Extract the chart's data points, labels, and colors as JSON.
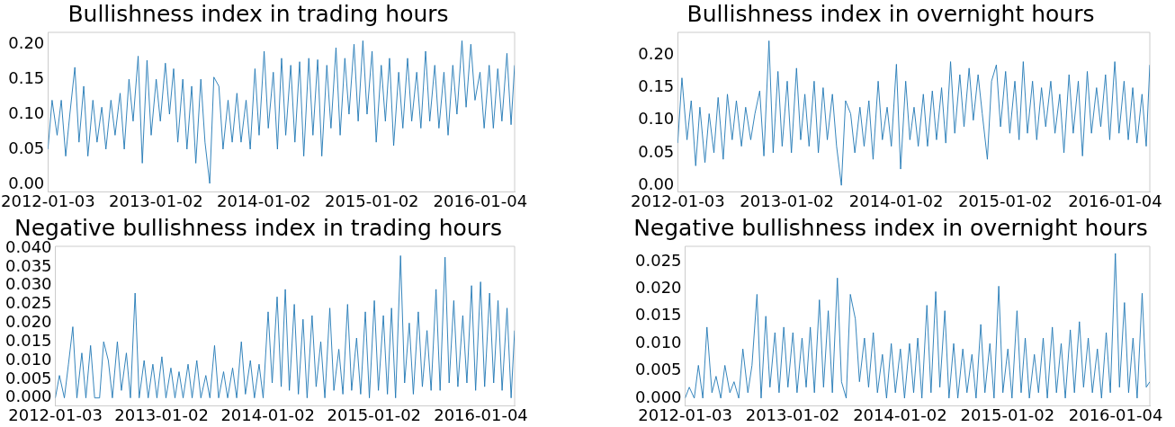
{
  "chart_data": [
    {
      "type": "line",
      "title": "Bullishness index in trading hours",
      "color": "#1f77b4",
      "x": [
        "2012-01-03",
        "2012-01-17",
        "2012-02-03",
        "2012-02-17",
        "2012-03-03",
        "2012-03-17",
        "2012-04-03",
        "2012-04-17",
        "2012-05-03",
        "2012-05-17",
        "2012-06-03",
        "2012-06-17",
        "2012-07-03",
        "2012-07-17",
        "2012-08-03",
        "2012-08-17",
        "2012-09-03",
        "2012-09-17",
        "2012-10-03",
        "2012-10-17",
        "2012-11-03",
        "2012-11-17",
        "2012-12-03",
        "2012-12-17",
        "2013-01-03",
        "2013-01-17",
        "2013-02-03",
        "2013-02-17",
        "2013-03-03",
        "2013-03-17",
        "2013-04-03",
        "2013-04-17",
        "2013-05-03",
        "2013-05-17",
        "2013-06-03",
        "2013-06-17",
        "2013-07-03",
        "2013-07-17",
        "2013-08-03",
        "2013-08-17",
        "2013-09-03",
        "2013-09-17",
        "2013-10-03",
        "2013-10-17",
        "2013-11-03",
        "2013-11-17",
        "2013-12-03",
        "2013-12-17",
        "2014-01-03",
        "2014-01-17",
        "2014-02-03",
        "2014-02-17",
        "2014-03-03",
        "2014-03-17",
        "2014-04-03",
        "2014-04-17",
        "2014-05-03",
        "2014-05-17",
        "2014-06-03",
        "2014-06-17",
        "2014-07-03",
        "2014-07-17",
        "2014-08-03",
        "2014-08-17",
        "2014-09-03",
        "2014-09-17",
        "2014-10-03",
        "2014-10-17",
        "2014-11-03",
        "2014-11-17",
        "2014-12-03",
        "2014-12-17",
        "2015-01-03",
        "2015-01-17",
        "2015-02-03",
        "2015-02-17",
        "2015-03-03",
        "2015-03-17",
        "2015-04-03",
        "2015-04-17",
        "2015-05-03",
        "2015-05-17",
        "2015-06-03",
        "2015-06-17",
        "2015-07-03",
        "2015-07-17",
        "2015-08-03",
        "2015-08-17",
        "2015-09-03",
        "2015-09-17",
        "2015-10-03",
        "2015-10-17",
        "2015-11-03",
        "2015-11-17",
        "2015-12-03",
        "2015-12-17",
        "2016-01-03",
        "2016-01-17",
        "2016-02-03",
        "2016-02-17",
        "2016-03-03",
        "2016-03-17",
        "2016-04-03",
        "2016-04-17",
        "2016-04-29"
      ],
      "values": [
        0.05,
        0.12,
        0.07,
        0.12,
        0.04,
        0.1,
        0.167,
        0.06,
        0.14,
        0.04,
        0.12,
        0.06,
        0.11,
        0.05,
        0.12,
        0.07,
        0.13,
        0.05,
        0.15,
        0.09,
        0.183,
        0.03,
        0.177,
        0.07,
        0.15,
        0.09,
        0.173,
        0.1,
        0.165,
        0.06,
        0.15,
        0.05,
        0.14,
        0.03,
        0.15,
        0.06,
        0.001,
        0.153,
        0.14,
        0.05,
        0.12,
        0.06,
        0.13,
        0.06,
        0.12,
        0.05,
        0.165,
        0.07,
        0.19,
        0.08,
        0.16,
        0.05,
        0.18,
        0.07,
        0.17,
        0.06,
        0.175,
        0.04,
        0.18,
        0.07,
        0.178,
        0.04,
        0.17,
        0.08,
        0.195,
        0.07,
        0.18,
        0.1,
        0.2,
        0.09,
        0.205,
        0.1,
        0.19,
        0.06,
        0.17,
        0.09,
        0.18,
        0.055,
        0.16,
        0.08,
        0.18,
        0.09,
        0.16,
        0.08,
        0.19,
        0.09,
        0.17,
        0.08,
        0.16,
        0.07,
        0.17,
        0.1,
        0.205,
        0.11,
        0.2,
        0.12,
        0.16,
        0.08,
        0.17,
        0.08,
        0.165,
        0.09,
        0.187,
        0.085,
        0.17
      ],
      "xlim": [
        "2012-01-03",
        "2016-04-29"
      ],
      "xticks": [
        "2012-01-03",
        "2013-01-02",
        "2014-01-02",
        "2015-01-02",
        "2016-01-04"
      ],
      "ylim": [
        -0.011,
        0.217
      ],
      "yticks": [
        {
          "value": 0,
          "label": "0.00"
        },
        {
          "value": 0.05,
          "label": "0.05"
        },
        {
          "value": 0.1,
          "label": "0.10"
        },
        {
          "value": 0.15,
          "label": "0.15"
        },
        {
          "value": 0.2,
          "label": "0.20"
        }
      ]
    },
    {
      "type": "line",
      "title": "Bullishness index in overnight hours",
      "color": "#1f77b4",
      "x": [
        "2012-01-03",
        "2012-01-17",
        "2012-02-03",
        "2012-02-17",
        "2012-03-03",
        "2012-03-17",
        "2012-04-03",
        "2012-04-17",
        "2012-05-03",
        "2012-05-17",
        "2012-06-03",
        "2012-06-17",
        "2012-07-03",
        "2012-07-17",
        "2012-08-03",
        "2012-08-17",
        "2012-09-03",
        "2012-09-17",
        "2012-10-03",
        "2012-10-17",
        "2012-11-03",
        "2012-11-17",
        "2012-12-03",
        "2012-12-17",
        "2013-01-03",
        "2013-01-17",
        "2013-02-03",
        "2013-02-17",
        "2013-03-03",
        "2013-03-17",
        "2013-04-03",
        "2013-04-17",
        "2013-05-03",
        "2013-05-17",
        "2013-06-03",
        "2013-06-17",
        "2013-07-03",
        "2013-07-17",
        "2013-08-03",
        "2013-08-17",
        "2013-09-03",
        "2013-09-17",
        "2013-10-03",
        "2013-10-17",
        "2013-11-03",
        "2013-11-17",
        "2013-12-03",
        "2013-12-17",
        "2014-01-03",
        "2014-01-17",
        "2014-02-03",
        "2014-02-17",
        "2014-03-03",
        "2014-03-17",
        "2014-04-03",
        "2014-04-17",
        "2014-05-03",
        "2014-05-17",
        "2014-06-03",
        "2014-06-17",
        "2014-07-03",
        "2014-07-17",
        "2014-08-03",
        "2014-08-17",
        "2014-09-03",
        "2014-09-17",
        "2014-10-03",
        "2014-10-17",
        "2014-11-03",
        "2014-11-17",
        "2014-12-03",
        "2014-12-17",
        "2015-01-03",
        "2015-01-17",
        "2015-02-03",
        "2015-02-17",
        "2015-03-03",
        "2015-03-17",
        "2015-04-03",
        "2015-04-17",
        "2015-05-03",
        "2015-05-17",
        "2015-06-03",
        "2015-06-17",
        "2015-07-03",
        "2015-07-17",
        "2015-08-03",
        "2015-08-17",
        "2015-09-03",
        "2015-09-17",
        "2015-10-03",
        "2015-10-17",
        "2015-11-03",
        "2015-11-17",
        "2015-12-03",
        "2015-12-17",
        "2016-01-03",
        "2016-01-17",
        "2016-02-03",
        "2016-02-17",
        "2016-03-03",
        "2016-03-17",
        "2016-04-03",
        "2016-04-17",
        "2016-04-29"
      ],
      "values": [
        0.065,
        0.165,
        0.07,
        0.13,
        0.03,
        0.12,
        0.035,
        0.11,
        0.05,
        0.135,
        0.04,
        0.14,
        0.07,
        0.13,
        0.06,
        0.12,
        0.07,
        0.11,
        0.145,
        0.045,
        0.222,
        0.05,
        0.175,
        0.06,
        0.16,
        0.05,
        0.18,
        0.07,
        0.14,
        0.06,
        0.16,
        0.05,
        0.15,
        0.07,
        0.14,
        0.06,
        0.0,
        0.13,
        0.11,
        0.05,
        0.12,
        0.06,
        0.13,
        0.04,
        0.16,
        0.07,
        0.12,
        0.06,
        0.186,
        0.025,
        0.16,
        0.07,
        0.12,
        0.06,
        0.14,
        0.06,
        0.145,
        0.07,
        0.15,
        0.065,
        0.19,
        0.08,
        0.17,
        0.09,
        0.18,
        0.1,
        0.17,
        0.11,
        0.04,
        0.16,
        0.185,
        0.09,
        0.175,
        0.08,
        0.16,
        0.07,
        0.19,
        0.08,
        0.16,
        0.07,
        0.15,
        0.09,
        0.16,
        0.08,
        0.14,
        0.05,
        0.17,
        0.08,
        0.16,
        0.045,
        0.175,
        0.08,
        0.15,
        0.09,
        0.17,
        0.07,
        0.19,
        0.08,
        0.16,
        0.07,
        0.15,
        0.065,
        0.14,
        0.06,
        0.185
      ],
      "xlim": [
        "2012-01-03",
        "2016-04-29"
      ],
      "xticks": [
        "2012-01-03",
        "2013-01-02",
        "2014-01-02",
        "2015-01-02",
        "2016-01-04"
      ],
      "ylim": [
        -0.01,
        0.235
      ],
      "yticks": [
        {
          "value": 0,
          "label": "0.00"
        },
        {
          "value": 0.05,
          "label": "0.05"
        },
        {
          "value": 0.1,
          "label": "0.10"
        },
        {
          "value": 0.15,
          "label": "0.15"
        },
        {
          "value": 0.2,
          "label": "0.20"
        }
      ]
    },
    {
      "type": "line",
      "title": "Negative bullishness index in trading hours",
      "color": "#1f77b4",
      "x": [
        "2012-01-03",
        "2012-01-17",
        "2012-02-03",
        "2012-02-17",
        "2012-03-03",
        "2012-03-17",
        "2012-04-03",
        "2012-04-17",
        "2012-05-03",
        "2012-05-17",
        "2012-06-03",
        "2012-06-17",
        "2012-07-03",
        "2012-07-17",
        "2012-08-03",
        "2012-08-17",
        "2012-09-03",
        "2012-09-17",
        "2012-10-03",
        "2012-10-17",
        "2012-11-03",
        "2012-11-17",
        "2012-12-03",
        "2012-12-17",
        "2013-01-03",
        "2013-01-17",
        "2013-02-03",
        "2013-02-17",
        "2013-03-03",
        "2013-03-17",
        "2013-04-03",
        "2013-04-17",
        "2013-05-03",
        "2013-05-17",
        "2013-06-03",
        "2013-06-17",
        "2013-07-03",
        "2013-07-17",
        "2013-08-03",
        "2013-08-17",
        "2013-09-03",
        "2013-09-17",
        "2013-10-03",
        "2013-10-17",
        "2013-11-03",
        "2013-11-17",
        "2013-12-03",
        "2013-12-17",
        "2014-01-03",
        "2014-01-17",
        "2014-02-03",
        "2014-02-17",
        "2014-03-03",
        "2014-03-17",
        "2014-04-03",
        "2014-04-17",
        "2014-05-03",
        "2014-05-17",
        "2014-06-03",
        "2014-06-17",
        "2014-07-03",
        "2014-07-17",
        "2014-08-03",
        "2014-08-17",
        "2014-09-03",
        "2014-09-17",
        "2014-10-03",
        "2014-10-17",
        "2014-11-03",
        "2014-11-17",
        "2014-12-03",
        "2014-12-17",
        "2015-01-03",
        "2015-01-17",
        "2015-02-03",
        "2015-02-17",
        "2015-03-03",
        "2015-03-17",
        "2015-04-03",
        "2015-04-17",
        "2015-05-03",
        "2015-05-17",
        "2015-06-03",
        "2015-06-17",
        "2015-07-03",
        "2015-07-17",
        "2015-08-03",
        "2015-08-17",
        "2015-09-03",
        "2015-09-17",
        "2015-10-03",
        "2015-10-17",
        "2015-11-03",
        "2015-11-17",
        "2015-12-03",
        "2015-12-17",
        "2016-01-03",
        "2016-01-17",
        "2016-02-03",
        "2016-02-17",
        "2016-03-03",
        "2016-03-17",
        "2016-04-03",
        "2016-04-17",
        "2016-04-29"
      ],
      "values": [
        0.0,
        0.006,
        0.0,
        0.009,
        0.019,
        0.0,
        0.012,
        0.0,
        0.014,
        0.0,
        0.0,
        0.015,
        0.01,
        0.0,
        0.015,
        0.002,
        0.012,
        0.0,
        0.028,
        0.0,
        0.01,
        0.0,
        0.009,
        0.0,
        0.011,
        0.0,
        0.008,
        0.0,
        0.007,
        0.0,
        0.009,
        0.0,
        0.01,
        0.0,
        0.006,
        0.0,
        0.014,
        0.0,
        0.007,
        0.0,
        0.008,
        0.0,
        0.015,
        0.001,
        0.01,
        0.0,
        0.009,
        0.0,
        0.023,
        0.004,
        0.027,
        0.003,
        0.029,
        0.002,
        0.025,
        0.001,
        0.021,
        0.0,
        0.022,
        0.003,
        0.015,
        0.0,
        0.024,
        0.002,
        0.013,
        0.001,
        0.025,
        0.002,
        0.016,
        0.001,
        0.023,
        0.0,
        0.026,
        0.002,
        0.022,
        0.001,
        0.024,
        0.0,
        0.038,
        0.004,
        0.02,
        0.001,
        0.023,
        0.003,
        0.018,
        0.002,
        0.029,
        0.002,
        0.0376,
        0.004,
        0.026,
        0.003,
        0.022,
        0.004,
        0.03,
        0.002,
        0.031,
        0.003,
        0.028,
        0.004,
        0.026,
        0.002,
        0.024,
        0.0,
        0.018
      ],
      "xlim": [
        "2012-01-03",
        "2016-04-29"
      ],
      "xticks": [
        "2012-01-03",
        "2013-01-02",
        "2014-01-02",
        "2015-01-02",
        "2016-01-04"
      ],
      "ylim": [
        -0.0021,
        0.0405
      ],
      "yticks": [
        {
          "value": 0,
          "label": "0.000"
        },
        {
          "value": 0.005,
          "label": "0.005"
        },
        {
          "value": 0.01,
          "label": "0.010"
        },
        {
          "value": 0.015,
          "label": "0.015"
        },
        {
          "value": 0.02,
          "label": "0.020"
        },
        {
          "value": 0.025,
          "label": "0.025"
        },
        {
          "value": 0.03,
          "label": "0.030"
        },
        {
          "value": 0.035,
          "label": "0.035"
        },
        {
          "value": 0.04,
          "label": "0.040"
        }
      ]
    },
    {
      "type": "line",
      "title": "Negative bullishness index in overnight hours",
      "color": "#1f77b4",
      "x": [
        "2012-01-03",
        "2012-01-17",
        "2012-02-03",
        "2012-02-17",
        "2012-03-03",
        "2012-03-17",
        "2012-04-03",
        "2012-04-17",
        "2012-05-03",
        "2012-05-17",
        "2012-06-03",
        "2012-06-17",
        "2012-07-03",
        "2012-07-17",
        "2012-08-03",
        "2012-08-17",
        "2012-09-03",
        "2012-09-17",
        "2012-10-03",
        "2012-10-17",
        "2012-11-03",
        "2012-11-17",
        "2012-12-03",
        "2012-12-17",
        "2013-01-03",
        "2013-01-17",
        "2013-02-03",
        "2013-02-17",
        "2013-03-03",
        "2013-03-17",
        "2013-04-03",
        "2013-04-17",
        "2013-05-03",
        "2013-05-17",
        "2013-06-03",
        "2013-06-17",
        "2013-07-03",
        "2013-07-17",
        "2013-08-03",
        "2013-08-17",
        "2013-09-03",
        "2013-09-17",
        "2013-10-03",
        "2013-10-17",
        "2013-11-03",
        "2013-11-17",
        "2013-12-03",
        "2013-12-17",
        "2014-01-03",
        "2014-01-17",
        "2014-02-03",
        "2014-02-17",
        "2014-03-03",
        "2014-03-17",
        "2014-04-03",
        "2014-04-17",
        "2014-05-03",
        "2014-05-17",
        "2014-06-03",
        "2014-06-17",
        "2014-07-03",
        "2014-07-17",
        "2014-08-03",
        "2014-08-17",
        "2014-09-03",
        "2014-09-17",
        "2014-10-03",
        "2014-10-17",
        "2014-11-03",
        "2014-11-17",
        "2014-12-03",
        "2014-12-17",
        "2015-01-03",
        "2015-01-17",
        "2015-02-03",
        "2015-02-17",
        "2015-03-03",
        "2015-03-17",
        "2015-04-03",
        "2015-04-17",
        "2015-05-03",
        "2015-05-17",
        "2015-06-03",
        "2015-06-17",
        "2015-07-03",
        "2015-07-17",
        "2015-08-03",
        "2015-08-17",
        "2015-09-03",
        "2015-09-17",
        "2015-10-03",
        "2015-10-17",
        "2015-11-03",
        "2015-11-17",
        "2015-12-03",
        "2015-12-17",
        "2016-01-03",
        "2016-01-17",
        "2016-02-03",
        "2016-02-17",
        "2016-03-03",
        "2016-03-17",
        "2016-04-03",
        "2016-04-17",
        "2016-04-29"
      ],
      "values": [
        0.0,
        0.002,
        0.0,
        0.006,
        0.0,
        0.013,
        0.001,
        0.004,
        0.0,
        0.006,
        0.001,
        0.003,
        0.0,
        0.009,
        0.001,
        0.006,
        0.019,
        0.0,
        0.015,
        0.002,
        0.012,
        0.001,
        0.013,
        0.002,
        0.012,
        0.001,
        0.011,
        0.002,
        0.013,
        0.001,
        0.018,
        0.002,
        0.016,
        0.001,
        0.022,
        0.003,
        0.0,
        0.019,
        0.0145,
        0.003,
        0.011,
        0.002,
        0.012,
        0.001,
        0.008,
        0.0,
        0.01,
        0.001,
        0.009,
        0.0,
        0.01,
        0.001,
        0.011,
        0.0,
        0.017,
        0.001,
        0.0195,
        0.002,
        0.016,
        0.0,
        0.01,
        0.0,
        0.009,
        0.001,
        0.008,
        0.0,
        0.0135,
        0.001,
        0.01,
        0.0,
        0.0205,
        0.001,
        0.009,
        0.0,
        0.016,
        0.001,
        0.011,
        0.0,
        0.008,
        0.001,
        0.011,
        0.0,
        0.013,
        0.001,
        0.01,
        0.0,
        0.0125,
        0.001,
        0.014,
        0.002,
        0.011,
        0.001,
        0.009,
        0.0,
        0.012,
        0.001,
        0.0265,
        0.002,
        0.0175,
        0.001,
        0.011,
        0.0,
        0.0192,
        0.002,
        0.003
      ],
      "xlim": [
        "2012-01-03",
        "2016-04-29"
      ],
      "xticks": [
        "2012-01-03",
        "2013-01-02",
        "2014-01-02",
        "2015-01-02",
        "2016-01-04"
      ],
      "ylim": [
        -0.0014,
        0.0278
      ],
      "yticks": [
        {
          "value": 0,
          "label": "0.000"
        },
        {
          "value": 0.005,
          "label": "0.005"
        },
        {
          "value": 0.01,
          "label": "0.010"
        },
        {
          "value": 0.015,
          "label": "0.015"
        },
        {
          "value": 0.02,
          "label": "0.020"
        },
        {
          "value": 0.025,
          "label": "0.025"
        }
      ]
    }
  ]
}
